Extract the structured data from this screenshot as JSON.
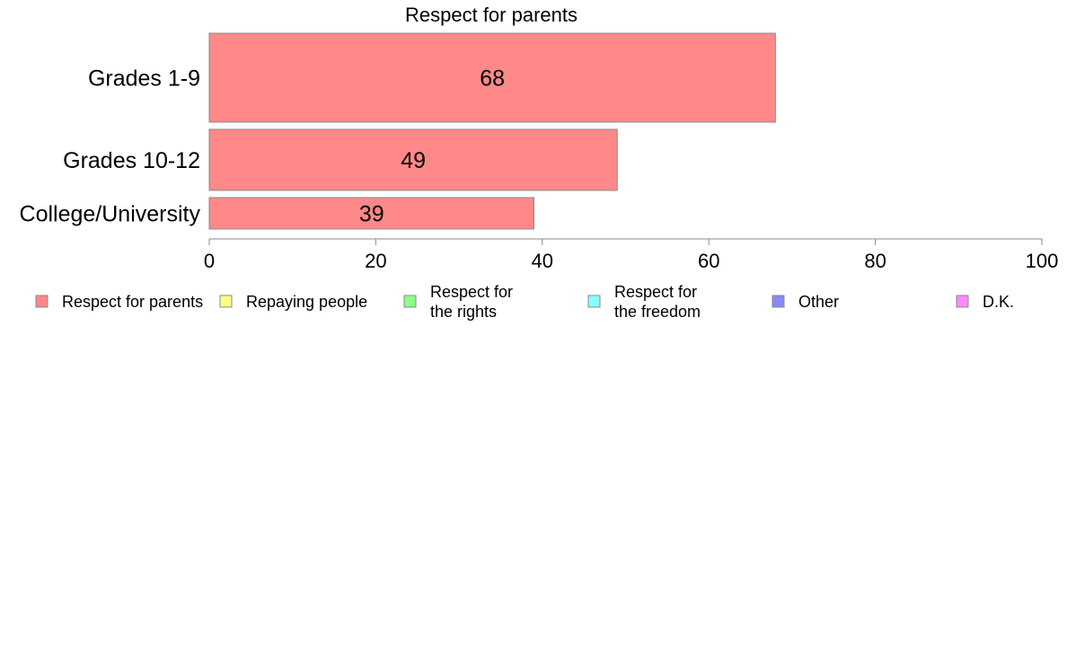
{
  "chart_data": {
    "type": "bar",
    "orientation": "horizontal",
    "title": "Respect for parents",
    "categories": [
      "Grades 1-9",
      "Grades 10-12",
      "College/University"
    ],
    "series": [
      {
        "name": "Respect for parents",
        "values": [
          68,
          49,
          39
        ],
        "color": "#ff8888"
      }
    ],
    "data_labels": [
      "68",
      "49",
      "39"
    ],
    "xlim": [
      0,
      100
    ],
    "x_ticks": [
      0,
      20,
      40,
      60,
      80,
      100
    ],
    "x_tick_labels": [
      "0",
      "20",
      "40",
      "60",
      "80",
      "100"
    ],
    "xlabel": "",
    "ylabel": "",
    "grid": false,
    "legend_position": "bottom",
    "legend": [
      {
        "lines": [
          "Respect for parents"
        ],
        "color": "#ff8888"
      },
      {
        "lines": [
          "Repaying people"
        ],
        "color": "#ffff88"
      },
      {
        "lines": [
          "Respect for",
          "the rights"
        ],
        "color": "#88ff88"
      },
      {
        "lines": [
          "Respect for",
          "the freedom"
        ],
        "color": "#88ffff"
      },
      {
        "lines": [
          "Other"
        ],
        "color": "#8888ff"
      },
      {
        "lines": [
          "D.K."
        ],
        "color": "#ff88ff"
      }
    ]
  }
}
